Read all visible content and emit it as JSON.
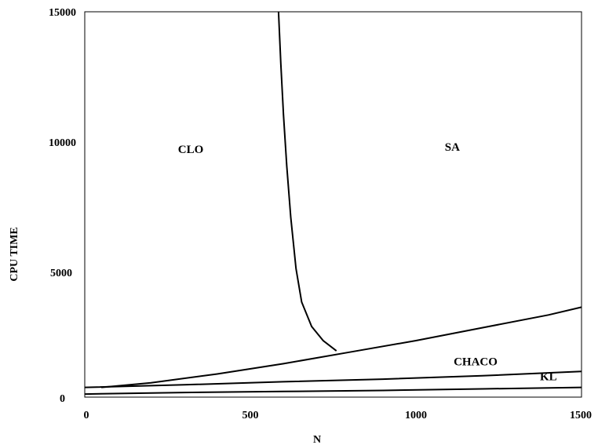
{
  "chart_data": {
    "type": "line",
    "title": "",
    "xlabel": "N",
    "ylabel": "CPU TIME",
    "xlim": [
      0,
      1500
    ],
    "ylim": [
      0,
      15000
    ],
    "x_ticks": [
      "0",
      "500",
      "1000",
      "1500"
    ],
    "y_ticks": [
      "0",
      "5000",
      "10000",
      "15000"
    ],
    "grid": false,
    "legend": "none",
    "region_labels": [
      {
        "text": "CLO",
        "x": 320,
        "y": 9500
      },
      {
        "text": "SA",
        "x": 1110,
        "y": 9600
      },
      {
        "text": "CHACO",
        "x": 1180,
        "y": 1230
      },
      {
        "text": "KL",
        "x": 1400,
        "y": 650
      }
    ],
    "series": [
      {
        "points": [
          [
            585,
            15000
          ],
          [
            592,
            13000
          ],
          [
            600,
            11000
          ],
          [
            610,
            9000
          ],
          [
            622,
            7000
          ],
          [
            638,
            5000
          ],
          [
            655,
            3700
          ],
          [
            685,
            2750
          ],
          [
            720,
            2200
          ],
          [
            760,
            1800
          ]
        ]
      },
      {
        "points": [
          [
            50,
            380
          ],
          [
            200,
            560
          ],
          [
            400,
            900
          ],
          [
            600,
            1300
          ],
          [
            800,
            1750
          ],
          [
            1000,
            2200
          ],
          [
            1200,
            2700
          ],
          [
            1400,
            3200
          ],
          [
            1500,
            3500
          ]
        ]
      },
      {
        "points": [
          [
            0,
            380
          ],
          [
            300,
            480
          ],
          [
            600,
            600
          ],
          [
            900,
            700
          ],
          [
            1200,
            830
          ],
          [
            1500,
            1000
          ]
        ]
      },
      {
        "points": [
          [
            0,
            120
          ],
          [
            300,
            180
          ],
          [
            600,
            220
          ],
          [
            900,
            260
          ],
          [
            1200,
            320
          ],
          [
            1500,
            380
          ]
        ]
      }
    ]
  }
}
